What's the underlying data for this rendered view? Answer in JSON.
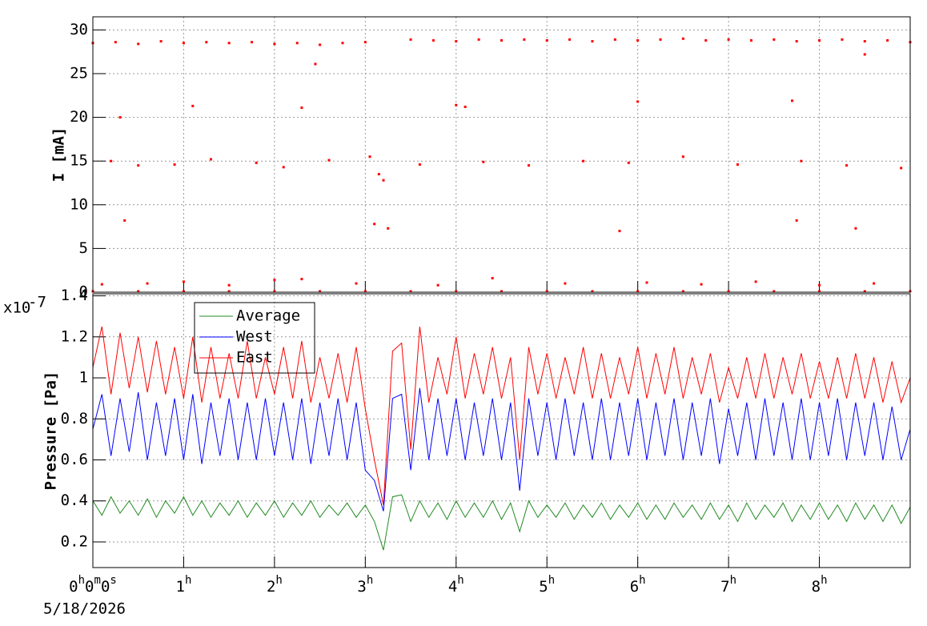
{
  "chart_data": [
    {
      "type": "scatter",
      "y_label": "I [mA]",
      "color": "#ff0000",
      "grid": true,
      "xlim": [
        0,
        9
      ],
      "ylim": [
        0,
        31.5
      ],
      "yticks": [
        0,
        5,
        10,
        15,
        20,
        25,
        30
      ],
      "x": [
        0,
        0.25,
        0.5,
        0.75,
        1,
        1.25,
        1.5,
        1.75,
        2,
        2.25,
        2.5,
        2.75,
        3,
        3.5,
        3.75,
        4,
        4.25,
        4.5,
        4.75,
        5,
        5.25,
        5.5,
        5.75,
        6,
        6.25,
        6.5,
        6.75,
        7,
        7.25,
        7.5,
        7.75,
        8,
        8.25,
        8.5,
        8.75,
        9,
        0.2,
        0.5,
        0.9,
        1.3,
        1.8,
        2.1,
        2.6,
        3.05,
        3.15,
        3.2,
        3.6,
        4.3,
        4.8,
        5.4,
        5.9,
        6.5,
        7.1,
        7.8,
        8.3,
        8.9,
        0.1,
        0.6,
        1.0,
        1.5,
        2.0,
        2.3,
        2.9,
        3.8,
        4.4,
        5.2,
        6.1,
        6.7,
        7.3,
        8.0,
        8.6,
        0.3,
        0.35,
        1.1,
        2.3,
        2.45,
        3.1,
        3.25,
        4.0,
        4.1,
        5.8,
        6.0,
        7.7,
        7.75,
        8.4,
        8.5,
        0,
        0.5,
        1,
        1.5,
        2,
        2.5,
        3,
        3.5,
        4,
        4.5,
        5,
        5.5,
        6,
        6.5,
        7,
        7.5,
        8,
        8.5,
        9
      ],
      "values": [
        28.5,
        28.6,
        28.4,
        28.7,
        28.5,
        28.6,
        28.5,
        28.6,
        28.4,
        28.5,
        28.3,
        28.5,
        28.6,
        28.9,
        28.8,
        28.7,
        28.9,
        28.8,
        28.9,
        28.8,
        28.9,
        28.7,
        28.9,
        28.8,
        28.9,
        29.0,
        28.8,
        28.9,
        28.8,
        28.9,
        28.7,
        28.8,
        28.9,
        28.7,
        28.8,
        28.6,
        15,
        14.5,
        14.6,
        15.2,
        14.8,
        14.3,
        15.1,
        15.5,
        13.5,
        12.8,
        14.6,
        14.9,
        14.5,
        15.0,
        14.8,
        15.5,
        14.6,
        15.0,
        14.5,
        14.2,
        0.9,
        1.0,
        1.2,
        0.8,
        1.4,
        1.5,
        1.0,
        0.8,
        1.6,
        1.0,
        1.1,
        0.9,
        1.2,
        0.8,
        1.0,
        20,
        8.2,
        21.3,
        21.1,
        26.1,
        7.8,
        7.3,
        21.4,
        21.2,
        7.0,
        21.8,
        21.9,
        8.2,
        7.3,
        27.2,
        0.1,
        0.1,
        0.1,
        0.1,
        0.1,
        0.1,
        0.1,
        0.1,
        0.1,
        0.1,
        0.1,
        0.1,
        0.1,
        0.1,
        0.1,
        0.1,
        0.1,
        0.1,
        0.1
      ]
    },
    {
      "type": "line",
      "y_label": "Pressure [Pa]",
      "y_multiplier": {
        "base": "x10",
        "exponent": "-7"
      },
      "x_time_offset": "5/18/2026",
      "grid": true,
      "legend": "top-left",
      "xlim": [
        0,
        9
      ],
      "ylim": [
        0.075,
        1.41
      ],
      "yticks": [
        0.2,
        0.4,
        0.6,
        0.8,
        1,
        1.2,
        1.4
      ],
      "xticks": [
        {
          "value": 0,
          "label": "0h0m0s"
        },
        {
          "value": 1,
          "label": "1h"
        },
        {
          "value": 2,
          "label": "2h"
        },
        {
          "value": 3,
          "label": "3h"
        },
        {
          "value": 4,
          "label": "4h"
        },
        {
          "value": 5,
          "label": "5h"
        },
        {
          "value": 6,
          "label": "6h"
        },
        {
          "value": 7,
          "label": "7h"
        },
        {
          "value": 8,
          "label": "8h"
        }
      ],
      "x": [
        0,
        0.1,
        0.2,
        0.3,
        0.4,
        0.5,
        0.6,
        0.7,
        0.8,
        0.9,
        1,
        1.1,
        1.2,
        1.3,
        1.4,
        1.5,
        1.6,
        1.7,
        1.8,
        1.9,
        2,
        2.1,
        2.2,
        2.3,
        2.4,
        2.5,
        2.6,
        2.7,
        2.8,
        2.9,
        3,
        3.1,
        3.2,
        3.3,
        3.4,
        3.5,
        3.6,
        3.7,
        3.8,
        3.9,
        4,
        4.1,
        4.2,
        4.3,
        4.4,
        4.5,
        4.6,
        4.7,
        4.8,
        4.9,
        5,
        5.1,
        5.2,
        5.3,
        5.4,
        5.5,
        5.6,
        5.7,
        5.8,
        5.9,
        6,
        6.1,
        6.2,
        6.3,
        6.4,
        6.5,
        6.6,
        6.7,
        6.8,
        6.9,
        7,
        7.1,
        7.2,
        7.3,
        7.4,
        7.5,
        7.6,
        7.7,
        7.8,
        7.9,
        8,
        8.1,
        8.2,
        8.3,
        8.4,
        8.5,
        8.6,
        8.7,
        8.8,
        8.9,
        9
      ],
      "series": [
        {
          "name": "Average",
          "color": "#228b22",
          "values": [
            0.4,
            0.33,
            0.42,
            0.34,
            0.4,
            0.33,
            0.41,
            0.32,
            0.4,
            0.34,
            0.42,
            0.33,
            0.4,
            0.32,
            0.39,
            0.33,
            0.4,
            0.32,
            0.39,
            0.33,
            0.4,
            0.32,
            0.39,
            0.33,
            0.4,
            0.32,
            0.38,
            0.33,
            0.39,
            0.32,
            0.38,
            0.3,
            0.16,
            0.42,
            0.43,
            0.3,
            0.4,
            0.32,
            0.39,
            0.31,
            0.4,
            0.32,
            0.39,
            0.32,
            0.4,
            0.31,
            0.39,
            0.25,
            0.4,
            0.32,
            0.38,
            0.32,
            0.39,
            0.31,
            0.38,
            0.32,
            0.39,
            0.31,
            0.38,
            0.32,
            0.39,
            0.31,
            0.38,
            0.31,
            0.39,
            0.32,
            0.38,
            0.31,
            0.39,
            0.31,
            0.38,
            0.3,
            0.39,
            0.31,
            0.38,
            0.32,
            0.39,
            0.3,
            0.38,
            0.31,
            0.39,
            0.31,
            0.38,
            0.3,
            0.39,
            0.31,
            0.38,
            0.3,
            0.38,
            0.29,
            0.37
          ]
        },
        {
          "name": "West",
          "color": "#0000ff",
          "values": [
            0.75,
            0.92,
            0.62,
            0.9,
            0.64,
            0.93,
            0.6,
            0.88,
            0.62,
            0.9,
            0.6,
            0.92,
            0.58,
            0.88,
            0.62,
            0.9,
            0.6,
            0.88,
            0.6,
            0.9,
            0.62,
            0.88,
            0.6,
            0.9,
            0.58,
            0.88,
            0.62,
            0.9,
            0.6,
            0.88,
            0.55,
            0.5,
            0.35,
            0.9,
            0.92,
            0.55,
            0.95,
            0.6,
            0.9,
            0.62,
            0.9,
            0.6,
            0.88,
            0.62,
            0.9,
            0.6,
            0.88,
            0.45,
            0.9,
            0.62,
            0.88,
            0.6,
            0.9,
            0.62,
            0.88,
            0.6,
            0.9,
            0.6,
            0.88,
            0.62,
            0.9,
            0.6,
            0.88,
            0.62,
            0.9,
            0.6,
            0.88,
            0.62,
            0.9,
            0.58,
            0.85,
            0.62,
            0.88,
            0.6,
            0.9,
            0.62,
            0.88,
            0.6,
            0.9,
            0.6,
            0.88,
            0.62,
            0.9,
            0.6,
            0.88,
            0.62,
            0.88,
            0.6,
            0.86,
            0.6,
            0.75
          ]
        },
        {
          "name": "East",
          "color": "#ff0000",
          "values": [
            1.05,
            1.25,
            0.92,
            1.22,
            0.95,
            1.2,
            0.93,
            1.18,
            0.92,
            1.15,
            0.9,
            1.2,
            0.88,
            1.15,
            0.9,
            1.12,
            0.9,
            1.18,
            0.9,
            1.1,
            0.92,
            1.15,
            0.9,
            1.18,
            0.88,
            1.1,
            0.9,
            1.12,
            0.88,
            1.15,
            0.85,
            0.6,
            0.38,
            1.13,
            1.17,
            0.65,
            1.25,
            0.88,
            1.1,
            0.92,
            1.2,
            0.9,
            1.12,
            0.92,
            1.15,
            0.9,
            1.1,
            0.6,
            1.15,
            0.92,
            1.12,
            0.9,
            1.1,
            0.92,
            1.15,
            0.9,
            1.12,
            0.9,
            1.1,
            0.92,
            1.15,
            0.9,
            1.12,
            0.92,
            1.15,
            0.9,
            1.1,
            0.92,
            1.12,
            0.88,
            1.05,
            0.9,
            1.1,
            0.9,
            1.12,
            0.9,
            1.1,
            0.92,
            1.12,
            0.9,
            1.08,
            0.9,
            1.1,
            0.9,
            1.12,
            0.9,
            1.1,
            0.88,
            1.08,
            0.88,
            1.0
          ]
        }
      ]
    }
  ]
}
